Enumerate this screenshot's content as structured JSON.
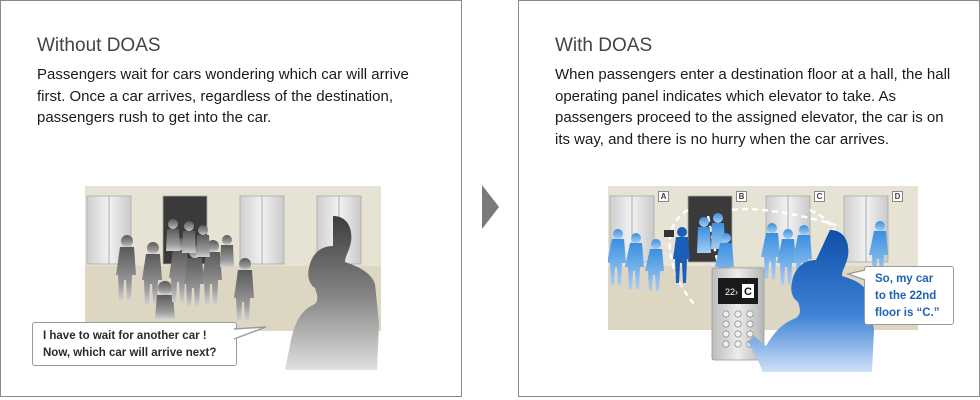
{
  "left_panel": {
    "title": "Without DOAS",
    "body": "Passengers wait for cars wondering which car will arrive first. Once a car arrives, regardless of the destination, passengers rush to get into the car.",
    "speech": {
      "line1": "I have to wait for another car !",
      "line2": "Now, which car will arrive next?"
    }
  },
  "right_panel": {
    "title": "With DOAS",
    "body": "When passengers enter a destination floor at a hall, the hall operating panel indicates which elevator to take. As passengers proceed to the assigned elevator, the car is on its way, and there is no hurry when the car arrives.",
    "elevator_labels": [
      "A",
      "B",
      "C",
      "D"
    ],
    "panel_display": {
      "floor": "22",
      "car": "C"
    },
    "speech": {
      "line1": "So, my car",
      "line2": "to the 22nd",
      "line3": "floor is “C.”"
    }
  },
  "colors": {
    "accent_blue": "#1d63b0",
    "wall": "#e6e2d4",
    "floor": "#d9d4c2",
    "arrow": "#7a7a7a"
  }
}
